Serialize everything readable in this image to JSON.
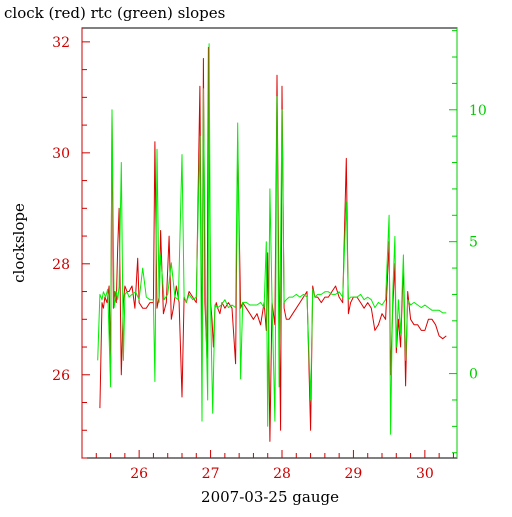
{
  "chart_data": {
    "type": "line",
    "title": "clock (red) rtc (green) slopes",
    "xlabel": "2007-03-25 gauge",
    "ylabel": "clockslope",
    "xlim": [
      25.2,
      30.45
    ],
    "ylim": [
      24.5,
      32.25
    ],
    "ylim_right": [
      -3.2,
      13.1
    ],
    "x_ticks": [
      26,
      27,
      28,
      29,
      30
    ],
    "y_ticks": [
      26,
      28,
      30,
      32
    ],
    "y_ticks_right": [
      0,
      5,
      10
    ],
    "colors": {
      "frame": "#000000",
      "left_axis": "#cc0000",
      "right_axis": "#00cc00",
      "clock_series": "#dd0000",
      "rtc_series": "#00ee00"
    },
    "series": [
      {
        "axis": "left",
        "color": "#dd0000",
        "x": [
          25.45,
          25.48,
          25.5,
          25.52,
          25.55,
          25.58,
          25.6,
          25.62,
          25.64,
          25.66,
          25.68,
          25.7,
          25.72,
          25.75,
          25.78,
          25.8,
          25.83,
          25.86,
          25.9,
          25.94,
          25.98,
          26.0,
          26.05,
          26.1,
          26.15,
          26.2,
          26.22,
          26.25,
          26.28,
          26.3,
          26.34,
          26.38,
          26.42,
          26.45,
          26.48,
          26.52,
          26.56,
          26.6,
          26.63,
          26.66,
          26.7,
          26.75,
          26.8,
          26.85,
          26.88,
          26.9,
          26.92,
          26.95,
          26.97,
          27.0,
          27.02,
          27.04,
          27.06,
          27.08,
          27.1,
          27.13,
          27.16,
          27.2,
          27.25,
          27.3,
          27.35,
          27.38,
          27.42,
          27.45,
          27.5,
          27.55,
          27.6,
          27.65,
          27.7,
          27.75,
          27.78,
          27.8,
          27.83,
          27.86,
          27.9,
          27.93,
          27.96,
          27.98,
          28.0,
          28.03,
          28.06,
          28.1,
          28.15,
          28.2,
          28.25,
          28.3,
          28.35,
          28.4,
          28.43,
          28.46,
          28.5,
          28.55,
          28.6,
          28.65,
          28.7,
          28.75,
          28.8,
          28.85,
          28.9,
          28.93,
          28.96,
          29.0,
          29.05,
          29.1,
          29.15,
          29.2,
          29.25,
          29.3,
          29.35,
          29.4,
          29.45,
          29.5,
          29.52,
          29.55,
          29.58,
          29.6,
          29.63,
          29.66,
          29.7,
          29.73,
          29.76,
          29.8,
          29.85,
          29.9,
          29.95,
          30.0,
          30.05,
          30.1,
          30.15,
          30.2,
          30.25,
          30.3
        ],
        "y": [
          25.4,
          27.3,
          27.2,
          27.4,
          27.3,
          27.6,
          26.2,
          30.7,
          27.2,
          27.5,
          27.3,
          28.3,
          29.0,
          26.0,
          27.3,
          27.6,
          27.5,
          27.5,
          27.6,
          27.2,
          28.1,
          27.3,
          27.2,
          27.2,
          27.3,
          27.3,
          30.2,
          27.2,
          27.4,
          28.6,
          27.1,
          27.3,
          28.5,
          27.0,
          27.2,
          27.6,
          27.3,
          25.6,
          27.4,
          27.3,
          27.5,
          27.4,
          27.3,
          31.2,
          26.0,
          31.7,
          27.3,
          26.3,
          31.9,
          27.3,
          27.0,
          26.5,
          27.2,
          27.3,
          27.2,
          27.1,
          27.3,
          27.2,
          27.3,
          27.2,
          26.2,
          30.2,
          27.2,
          27.3,
          27.2,
          27.1,
          27.0,
          27.1,
          26.9,
          27.3,
          26.8,
          28.2,
          24.8,
          27.3,
          26.9,
          31.4,
          27.2,
          25.0,
          31.2,
          27.2,
          27.0,
          27.0,
          27.1,
          27.2,
          27.3,
          27.4,
          27.5,
          25.0,
          27.6,
          27.4,
          27.4,
          27.3,
          27.4,
          27.4,
          27.5,
          27.6,
          27.4,
          27.3,
          29.9,
          27.1,
          27.3,
          27.4,
          27.4,
          27.3,
          27.2,
          27.3,
          27.2,
          26.8,
          26.9,
          27.1,
          27.0,
          28.4,
          26.0,
          27.2,
          28.0,
          26.4,
          27.0,
          26.5,
          28.0,
          25.8,
          27.5,
          27.0,
          26.9,
          26.9,
          26.8,
          26.8,
          27.0,
          27.0,
          26.9,
          26.7,
          26.65,
          26.7
        ]
      },
      {
        "axis": "right",
        "color": "#00ee00",
        "x": [
          25.42,
          25.45,
          25.48,
          25.5,
          25.53,
          25.56,
          25.6,
          25.62,
          25.65,
          25.68,
          25.7,
          25.72,
          25.75,
          25.78,
          25.8,
          25.83,
          25.86,
          25.9,
          25.95,
          26.0,
          26.05,
          26.1,
          26.15,
          26.2,
          26.22,
          26.25,
          26.28,
          26.3,
          26.35,
          26.4,
          26.45,
          26.5,
          26.55,
          26.6,
          26.63,
          26.66,
          26.7,
          26.75,
          26.8,
          26.85,
          26.88,
          26.9,
          26.93,
          26.96,
          26.98,
          27.0,
          27.03,
          27.06,
          27.1,
          27.15,
          27.2,
          27.25,
          27.3,
          27.35,
          27.38,
          27.42,
          27.45,
          27.5,
          27.55,
          27.6,
          27.65,
          27.7,
          27.75,
          27.78,
          27.8,
          27.83,
          27.86,
          27.9,
          27.93,
          27.96,
          28.0,
          28.03,
          28.06,
          28.1,
          28.15,
          28.2,
          28.25,
          28.3,
          28.35,
          28.4,
          28.43,
          28.46,
          28.5,
          28.55,
          28.6,
          28.65,
          28.7,
          28.75,
          28.8,
          28.85,
          28.9,
          28.93,
          28.96,
          29.0,
          29.05,
          29.1,
          29.15,
          29.2,
          29.25,
          29.3,
          29.35,
          29.4,
          29.45,
          29.5,
          29.52,
          29.55,
          29.58,
          29.6,
          29.63,
          29.66,
          29.7,
          29.73,
          29.76,
          29.8,
          29.85,
          29.9,
          29.95,
          30.0,
          30.05,
          30.1,
          30.15,
          30.2,
          30.25,
          30.3
        ],
        "y": [
          0.5,
          3.0,
          2.8,
          3.1,
          2.9,
          3.2,
          -0.5,
          10.0,
          2.5,
          3.1,
          2.8,
          3.3,
          8.0,
          0.5,
          3.0,
          3.1,
          2.9,
          3.0,
          3.1,
          2.8,
          4.0,
          2.9,
          2.8,
          2.8,
          -0.3,
          8.5,
          2.7,
          4.5,
          2.8,
          3.0,
          4.2,
          2.9,
          2.8,
          8.3,
          2.9,
          2.7,
          3.0,
          2.8,
          2.9,
          9.0,
          -1.8,
          10.8,
          2.6,
          -1.0,
          12.5,
          2.5,
          -1.5,
          2.6,
          2.5,
          2.6,
          2.8,
          2.5,
          2.6,
          2.5,
          9.5,
          -0.2,
          2.7,
          2.7,
          2.6,
          2.6,
          2.6,
          2.7,
          2.5,
          5.0,
          -2.0,
          7.0,
          2.8,
          -1.8,
          10.5,
          -0.5,
          10.0,
          2.7,
          2.8,
          2.9,
          2.9,
          3.0,
          2.9,
          3.0,
          2.9,
          -1.0,
          3.2,
          2.9,
          3.0,
          3.0,
          3.1,
          3.1,
          3.0,
          3.0,
          3.1,
          2.9,
          6.5,
          2.8,
          2.9,
          2.9,
          2.9,
          3.0,
          2.8,
          2.9,
          2.8,
          2.5,
          2.7,
          2.6,
          2.8,
          6.0,
          -2.3,
          3.0,
          5.2,
          1.0,
          2.8,
          1.5,
          4.5,
          0.5,
          2.8,
          2.6,
          2.7,
          2.6,
          2.5,
          2.6,
          2.5,
          2.4,
          2.4,
          2.4,
          2.3,
          2.3
        ]
      }
    ]
  }
}
